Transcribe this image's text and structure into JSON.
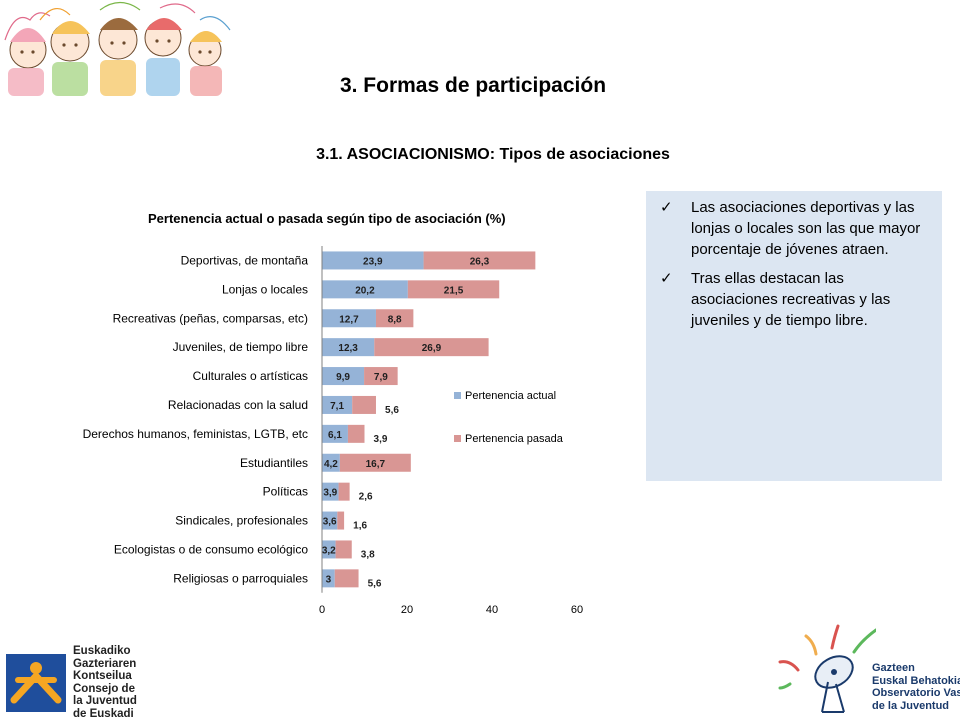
{
  "header": {
    "main_title": "3. Formas de participación",
    "sub_title": "3.1. ASOCIACIONISMO: Tipos de asociaciones"
  },
  "chart_data": {
    "type": "bar",
    "orientation": "horizontal",
    "stacked": true,
    "title": "Pertenencia actual o pasada según tipo de asociación (%)",
    "categories": [
      "Deportivas, de montaña",
      "Lonjas o locales",
      "Recreativas (peñas, comparsas, etc)",
      "Juveniles, de tiempo libre",
      "Culturales o artísticas",
      "Relacionadas con la salud",
      "Derechos humanos, feministas, LGTB, etc",
      "Estudiantiles",
      "Políticas",
      "Sindicales, profesionales",
      "Ecologistas o de consumo ecológico",
      "Religiosas o parroquiales"
    ],
    "series": [
      {
        "name": "Pertenencia actual",
        "color": "#95b3d7",
        "values": [
          23.9,
          20.2,
          12.7,
          12.3,
          9.9,
          7.1,
          6.1,
          4.2,
          3.9,
          3.6,
          3.2,
          3
        ],
        "labels": [
          "23,9",
          "20,2",
          "12,7",
          "12,3",
          "9,9",
          "7,1",
          "6,1",
          "4,2",
          "3,9",
          "3,6",
          "3,2",
          "3"
        ]
      },
      {
        "name": "Pertenencia pasada",
        "color": "#d99694",
        "values": [
          26.3,
          21.5,
          8.8,
          26.9,
          7.9,
          5.6,
          3.9,
          16.7,
          2.6,
          1.6,
          3.8,
          5.6
        ],
        "labels": [
          "26,3",
          "21,5",
          "8,8",
          "26,9",
          "7,9",
          "5,6",
          "3,9",
          "16,7",
          "2,6",
          "1,6",
          "3,8",
          "5,6"
        ]
      }
    ],
    "xlim": [
      0,
      60
    ],
    "x_ticks": [
      "0",
      "20",
      "40",
      "60"
    ],
    "legend_position": "right",
    "grid": false
  },
  "notes": {
    "check_symbol": "✓",
    "items": [
      "Las asociaciones  deportivas y las lonjas o locales son las que mayor porcentaje de jóvenes atraen.",
      "Tras ellas destacan las asociaciones recreativas y las juveniles y de tiempo libre."
    ]
  },
  "logo_left": {
    "lines": [
      "Euskadiko",
      "Gazteriaren",
      "Kontseilua",
      "Consejo de",
      "la Juventud",
      "de Euskadi"
    ]
  },
  "logo_right": {
    "lines": [
      "Gazteen",
      "Euskal Behatokia",
      "Observatorio Vasco",
      "de la Juventud"
    ]
  }
}
